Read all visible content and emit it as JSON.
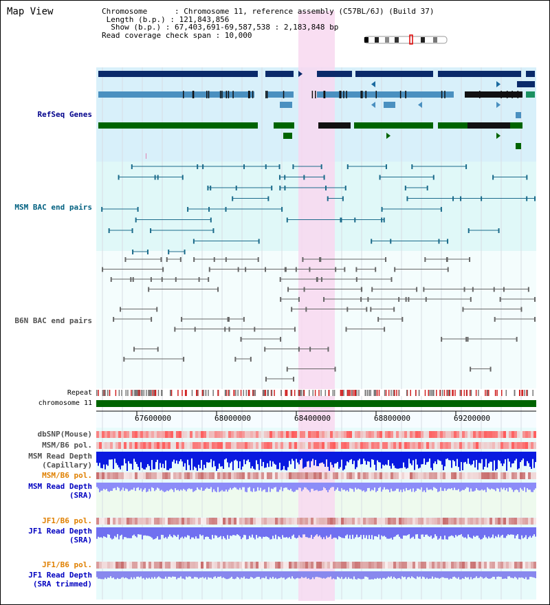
{
  "title": "Map View",
  "info": {
    "chromosome_line": "Chromosome      : Chromosome 11, reference assembly (C57BL/6J) (Build 37)",
    "length_line": " Length (b.p.) : 121,843,856",
    "show_line": "  Show (b.p.) : 67,403,691-69,587,538 : 2,183,848 bp",
    "coverage_line": "Read coverage check span : 10,000"
  },
  "tracks": {
    "refseq": "RefSeq Genes",
    "msm_bac": "MSM BAC end pairs",
    "b6n_bac": "B6N BAC end pairs",
    "repeat": "Repeat",
    "chromosome": "chromosome 11",
    "dbsnp": "dbSNP(Mouse)",
    "msm_b6_pol_1": "MSM/B6 pol.",
    "msm_read_depth_cap_1": "MSM Read Depth",
    "msm_read_depth_cap_2": "(Capillary)",
    "msm_b6_pol_2": "MSM/B6 pol.",
    "msm_read_depth_sra_1": "MSM Read Depth",
    "msm_read_depth_sra_2": "(SRA)",
    "jf1_b6_pol_1": "JF1/B6 pol.",
    "jf1_read_depth_sra_1": "JF1 Read Depth",
    "jf1_read_depth_sra_2": "(SRA)",
    "jf1_b6_pol_2": "JF1/B6 pol.",
    "jf1_read_depth_trim_1": "JF1 Read Depth",
    "jf1_read_depth_trim_2": "(SRA trimmed)"
  },
  "axis_ticks": [
    "67600000",
    "68000000",
    "68400000",
    "68800000",
    "69200000"
  ],
  "colors": {
    "navy_label": "#00008b",
    "teal_label": "#006080",
    "gray_label": "#505050",
    "orange_label": "#e08000",
    "blue_label": "#0000c0",
    "highlight": "#f8d8f0",
    "refseq_bg": "#d8f0fa",
    "msm_bg": "#e0f8f8",
    "chrom_bar": "#006400"
  }
}
